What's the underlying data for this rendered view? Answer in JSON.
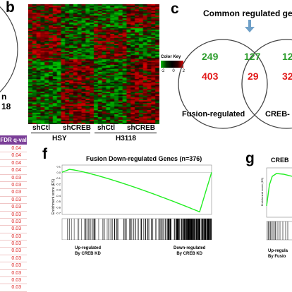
{
  "panels": {
    "b": "b",
    "c": "c",
    "f": "f",
    "g": "g"
  },
  "left_fragment": {
    "text_line1": "n",
    "text_line2": "18",
    "fdr_header": "FDR q-val",
    "fdr_values": [
      "0.04",
      "0.04",
      "0.04",
      "0.04",
      "0.03",
      "0.03",
      "0.03",
      "0.03",
      "0.03",
      "0.03",
      "0.03",
      "0.03",
      "0.03",
      "0.03",
      "0.03",
      "0.03",
      "0.03",
      "0.03",
      "0.03",
      "0.03"
    ]
  },
  "heatmap": {
    "color_key_title": "Color Key",
    "color_key_ticks": [
      "-2",
      "0",
      "2"
    ],
    "col_labels": [
      "shCtl",
      "shCREB",
      "shCtl",
      "shCREB"
    ],
    "group_labels": [
      "HSY",
      "H3118"
    ]
  },
  "venn": {
    "title": "Common regulated ge",
    "left_label": "Fusion-regulated",
    "right_label": "CREB-",
    "left_green": "249",
    "left_red": "403",
    "mid_green": "127",
    "mid_red": "29",
    "right_green": "12",
    "right_red": "32",
    "colors": {
      "up": "#2e9e2e",
      "down": "#e21b1b",
      "arrow": "#6fa0c8"
    }
  },
  "gsea_f": {
    "title": "Fusion Down-regulated Genes (n=376)",
    "ylabel": "Enrichment score (ES)",
    "yticks": [
      "0.1",
      "0.0",
      "-0.1",
      "-0.2",
      "-0.3",
      "-0.4",
      "-0.5",
      "-0.6",
      "-0.7"
    ],
    "left_caption_1": "Up-regulated",
    "left_caption_2": "By CREB KD",
    "right_caption_1": "Down-regulated",
    "right_caption_2": "By CREB KD",
    "line_color": "#22ee22"
  },
  "gsea_g": {
    "title": "CREB",
    "ylabel": "Enrichment score (ES)",
    "caption_1": "Up-regula",
    "caption_2": "By Fusio"
  }
}
